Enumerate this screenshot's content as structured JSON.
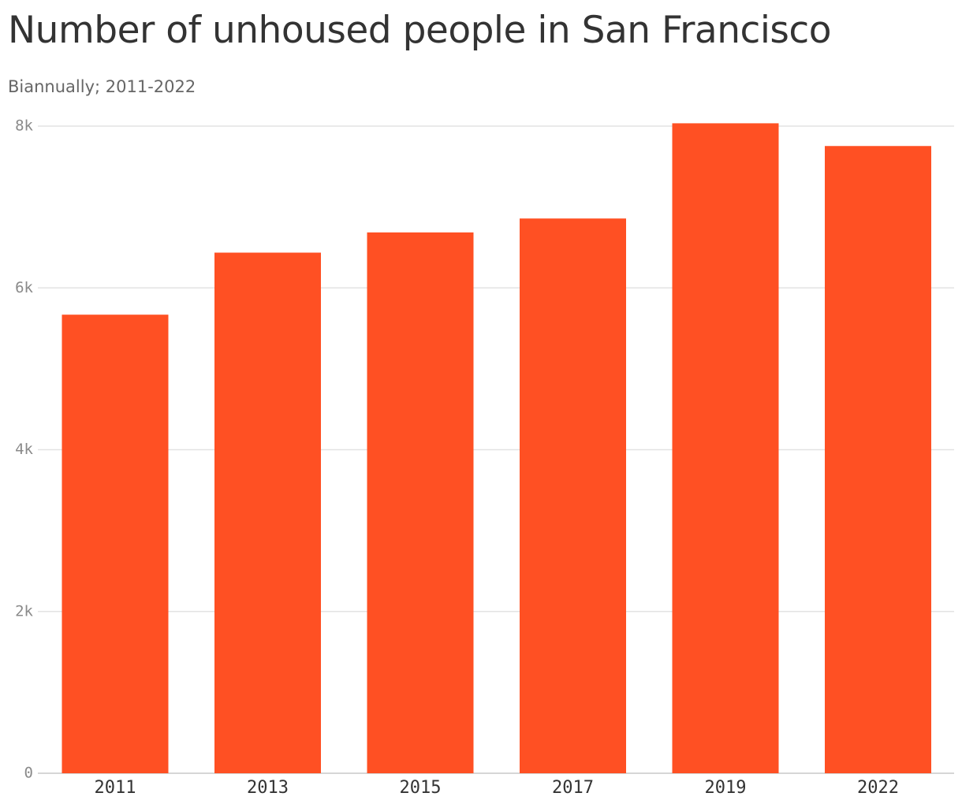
{
  "chart_data": {
    "type": "bar",
    "title": "Number of unhoused people in San Francisco",
    "subtitle": "Biannually; 2011-2022",
    "categories": [
      "2011",
      "2013",
      "2015",
      "2017",
      "2019",
      "2022"
    ],
    "values": [
      5669,
      6436,
      6686,
      6858,
      8035,
      7754
    ],
    "ylim": [
      0,
      8000
    ],
    "yticks": [
      0,
      2000,
      4000,
      6000,
      8000
    ],
    "ytick_labels": [
      "0",
      "2k",
      "4k",
      "6k",
      "8k"
    ],
    "grid": true,
    "bar_color": "#ff5023",
    "grid_color": "#e3e3e3",
    "axis_color": "#d6d6d6"
  }
}
